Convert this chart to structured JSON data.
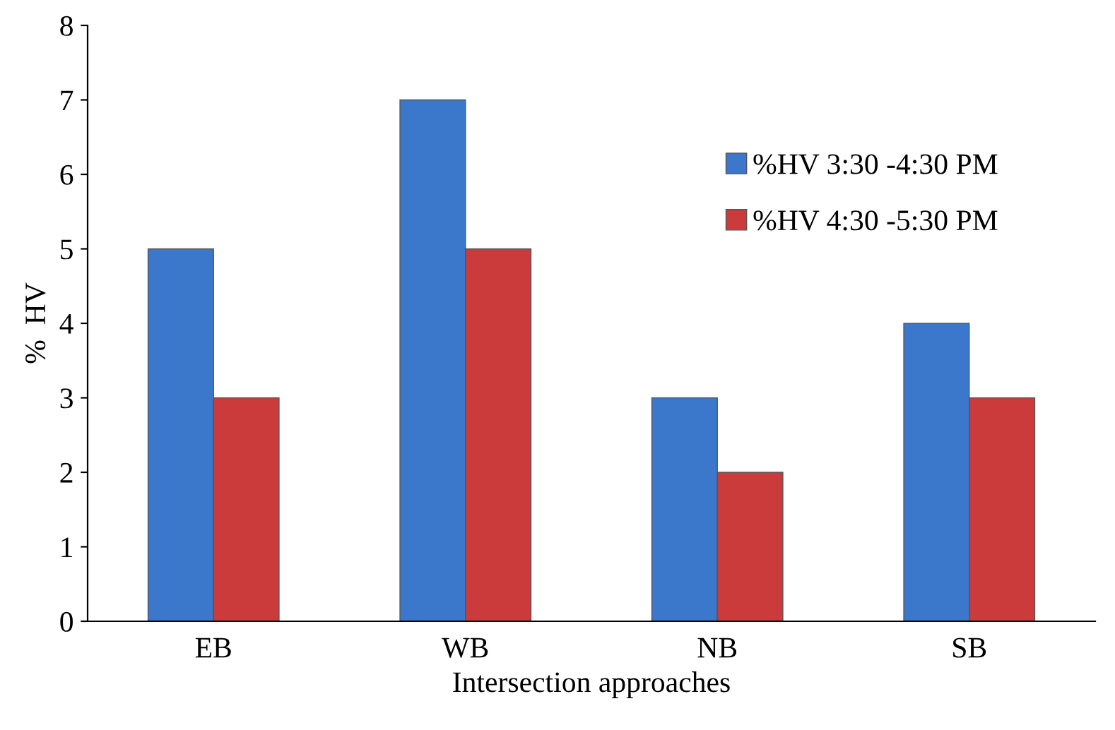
{
  "chart_data": {
    "type": "bar",
    "xlabel": "Intersection approaches",
    "ylabel": "%  HV",
    "categories": [
      "EB",
      "WB",
      "NB",
      "SB"
    ],
    "series": [
      {
        "name": "%HV 3:30 -4:30 PM",
        "color": "#3b78cc",
        "values": [
          5,
          7,
          3,
          4
        ]
      },
      {
        "name": "%HV 4:30 -5:30 PM",
        "color": "#cc3b3b",
        "values": [
          3,
          5,
          2,
          3
        ]
      }
    ],
    "ylim": [
      0,
      8
    ],
    "yticks": [
      0,
      1,
      2,
      3,
      4,
      5,
      6,
      7,
      8
    ],
    "grid": false,
    "legend": "top right"
  }
}
